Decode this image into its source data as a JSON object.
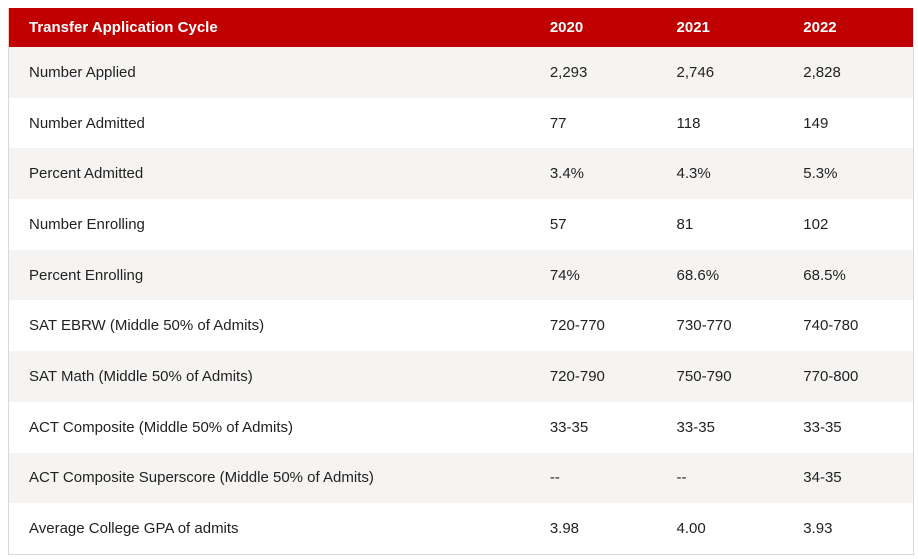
{
  "table": {
    "headers": [
      "Transfer Application Cycle",
      "2020",
      "2021",
      "2022"
    ],
    "rows": [
      [
        "Number Applied",
        "2,293",
        "2,746",
        "2,828"
      ],
      [
        "Number Admitted",
        "77",
        "118",
        "149"
      ],
      [
        "Percent Admitted",
        "3.4%",
        "4.3%",
        "5.3%"
      ],
      [
        "Number Enrolling",
        "57",
        "81",
        "102"
      ],
      [
        "Percent Enrolling",
        "74%",
        "68.6%",
        "68.5%"
      ],
      [
        "SAT EBRW (Middle 50% of Admits)",
        "720-770",
        "730-770",
        "740-780"
      ],
      [
        "SAT Math (Middle 50% of Admits)",
        "720-790",
        "750-790",
        "770-800"
      ],
      [
        "ACT Composite (Middle 50% of Admits)",
        "33-35",
        "33-35",
        "33-35"
      ],
      [
        "ACT Composite Superscore (Middle 50% of Admits)",
        "--",
        "--",
        "34-35"
      ],
      [
        "Average College GPA of admits",
        "3.98",
        "4.00",
        "3.93"
      ]
    ]
  },
  "colors": {
    "header_bg": "#c00000",
    "header_text": "#ffffff",
    "stripe": "#f5f4f2",
    "text": "#222222"
  }
}
